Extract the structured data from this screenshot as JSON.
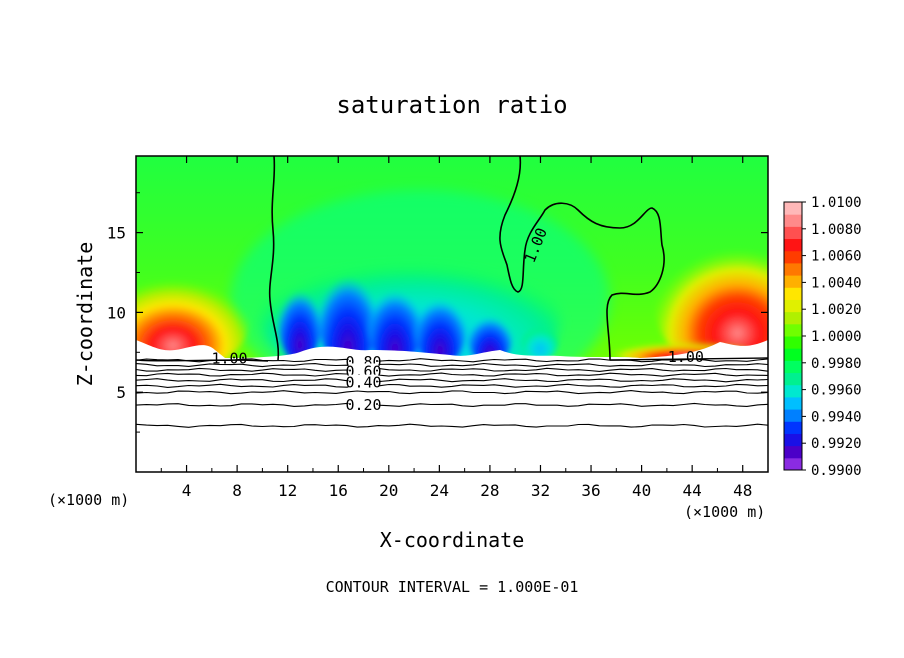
{
  "chart_data": {
    "type": "heatmap",
    "title": "saturation ratio",
    "xlabel": "X-coordinate",
    "ylabel": "Z-coordinate",
    "x_unit_left": "(×1000 m)",
    "x_unit_right": "(×1000 m)",
    "xlim": [
      0,
      50
    ],
    "ylim": [
      0,
      19.8
    ],
    "x_ticks": [
      4,
      8,
      12,
      16,
      20,
      24,
      28,
      32,
      36,
      40,
      44,
      48
    ],
    "y_ticks": [
      5,
      10,
      15
    ],
    "footer": "CONTOUR INTERVAL = 1.000E-01",
    "colorbar": {
      "min": 0.99,
      "max": 1.01,
      "labels": [
        "1.0100",
        "1.0080",
        "1.0060",
        "1.0040",
        "1.0020",
        "1.0000",
        "0.9980",
        "0.9960",
        "0.9940",
        "0.9920",
        "0.9900"
      ],
      "colors": [
        "#8a2be2",
        "#4b00c8",
        "#1a10e6",
        "#0035ff",
        "#0080ff",
        "#00bfff",
        "#00e8d0",
        "#00f090",
        "#00ff60",
        "#00ff20",
        "#30ff00",
        "#70ff00",
        "#b0f000",
        "#e0f000",
        "#ffe600",
        "#ffb000",
        "#ff7800",
        "#ff3c00",
        "#ff1414",
        "#ff5050",
        "#ff8a8a",
        "#ffb8b8"
      ]
    },
    "contour_labels": [
      {
        "text": "1.00",
        "x": 7.4,
        "z": 7.1
      },
      {
        "text": "1.00",
        "x": 43.5,
        "z": 7.2
      },
      {
        "text": "1.00",
        "x": 32.0,
        "z": 14.4
      },
      {
        "text": "0.80",
        "x": 18.0,
        "z": 6.9
      },
      {
        "text": "0.60",
        "x": 18.0,
        "z": 6.3
      },
      {
        "text": "0.40",
        "x": 18.0,
        "z": 5.6
      },
      {
        "text": "0.20",
        "x": 18.0,
        "z": 4.2
      }
    ],
    "isolines_below": [
      {
        "value": 0.9,
        "z": 7.0
      },
      {
        "value": 0.8,
        "z": 6.7
      },
      {
        "value": 0.7,
        "z": 6.4
      },
      {
        "value": 0.6,
        "z": 6.1
      },
      {
        "value": 0.5,
        "z": 5.75
      },
      {
        "value": 0.4,
        "z": 5.4
      },
      {
        "value": 0.3,
        "z": 5.0
      },
      {
        "value": 0.2,
        "z": 4.2
      },
      {
        "value": 0.1,
        "z": 2.9
      }
    ]
  }
}
